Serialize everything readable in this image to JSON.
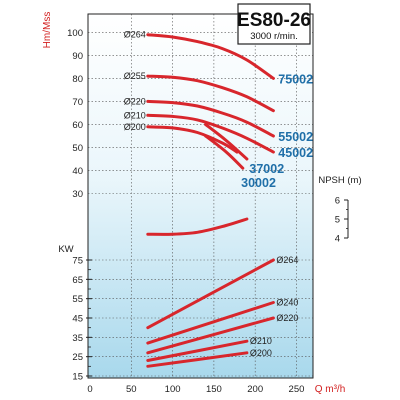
{
  "title": "ES80-26",
  "subtitle": "3000 r/min.",
  "colors": {
    "curve": "#d8262c",
    "model_label": "#1f6fa8",
    "unit": "#d21f1f",
    "bg_top": "#ffffff",
    "bg_bottom": "#a8d8ec"
  },
  "chart_data": {
    "type": "line",
    "title": "ES80-26",
    "subtitle": "3000 r/min.",
    "xlabel": "Q m³/h",
    "x_ticks": [
      "0",
      "50",
      "100",
      "150",
      "200",
      "250"
    ],
    "xlim": [
      0,
      270
    ],
    "grid": true,
    "head_panel": {
      "ylabel": "Hm/Mss",
      "ylim": [
        25,
        108
      ],
      "y_ticks": [
        "30",
        "40",
        "50",
        "60",
        "70",
        "80",
        "90",
        "100"
      ],
      "series": [
        {
          "name": "Ø264",
          "x": [
            70,
            100,
            130,
            160,
            190,
            222
          ],
          "y": [
            99,
            98,
            96,
            93,
            88,
            80
          ]
        },
        {
          "name": "Ø255",
          "x": [
            70,
            100,
            130,
            160,
            190,
            222
          ],
          "y": [
            81,
            80.5,
            79,
            76,
            72,
            66
          ]
        },
        {
          "name": "Ø220",
          "x": [
            70,
            100,
            130,
            160,
            190,
            222
          ],
          "y": [
            70,
            69.5,
            68,
            65,
            61,
            55
          ]
        },
        {
          "name": "Ø210",
          "x": [
            70,
            100,
            130,
            160,
            190,
            222
          ],
          "y": [
            64,
            63.5,
            62,
            58.5,
            54,
            48
          ]
        },
        {
          "name": "Ø200",
          "x": [
            70,
            100,
            130,
            160,
            178
          ],
          "y": [
            59,
            58.5,
            56.5,
            52,
            48
          ]
        },
        {
          "name": "37002",
          "x": [
            140,
            165,
            190
          ],
          "y": [
            60,
            53,
            45
          ]
        },
        {
          "name": "30002",
          "x": [
            140,
            165,
            185
          ],
          "y": [
            55,
            48,
            41
          ]
        }
      ],
      "curve_labels": [
        "Ø264",
        "Ø255",
        "Ø220",
        "Ø210",
        "Ø200"
      ],
      "models": [
        "75002",
        "55002",
        "45002",
        "37002",
        "30002"
      ]
    },
    "npsh_panel": {
      "ylabel": "NPSH (m)",
      "y_ticks": [
        "6",
        "5",
        "4"
      ],
      "ylim": [
        3.6,
        6.4
      ],
      "series": [
        {
          "name": "NPSH",
          "x": [
            70,
            100,
            130,
            160,
            190
          ],
          "y": [
            4.2,
            4.2,
            4.3,
            4.6,
            5.0
          ]
        }
      ]
    },
    "power_panel": {
      "ylabel": "KW",
      "ylim": [
        15,
        75
      ],
      "y_ticks": [
        "15",
        "25",
        "35",
        "45",
        "55",
        "65",
        "75"
      ],
      "y_ticks_mid": [
        "20",
        "30",
        "40",
        "50",
        "60",
        "70"
      ],
      "series": [
        {
          "name": "Ø264",
          "x": [
            70,
            222
          ],
          "y": [
            40,
            75
          ]
        },
        {
          "name": "Ø240",
          "x": [
            70,
            222
          ],
          "y": [
            32,
            53
          ]
        },
        {
          "name": "Ø220",
          "x": [
            70,
            222
          ],
          "y": [
            27,
            45
          ]
        },
        {
          "name": "Ø210",
          "x": [
            70,
            190
          ],
          "y": [
            23,
            33
          ]
        },
        {
          "name": "Ø200",
          "x": [
            70,
            190
          ],
          "y": [
            20,
            27
          ]
        }
      ],
      "curve_labels": [
        "Ø264",
        "Ø240",
        "Ø220",
        "Ø210",
        "Ø200"
      ]
    }
  }
}
